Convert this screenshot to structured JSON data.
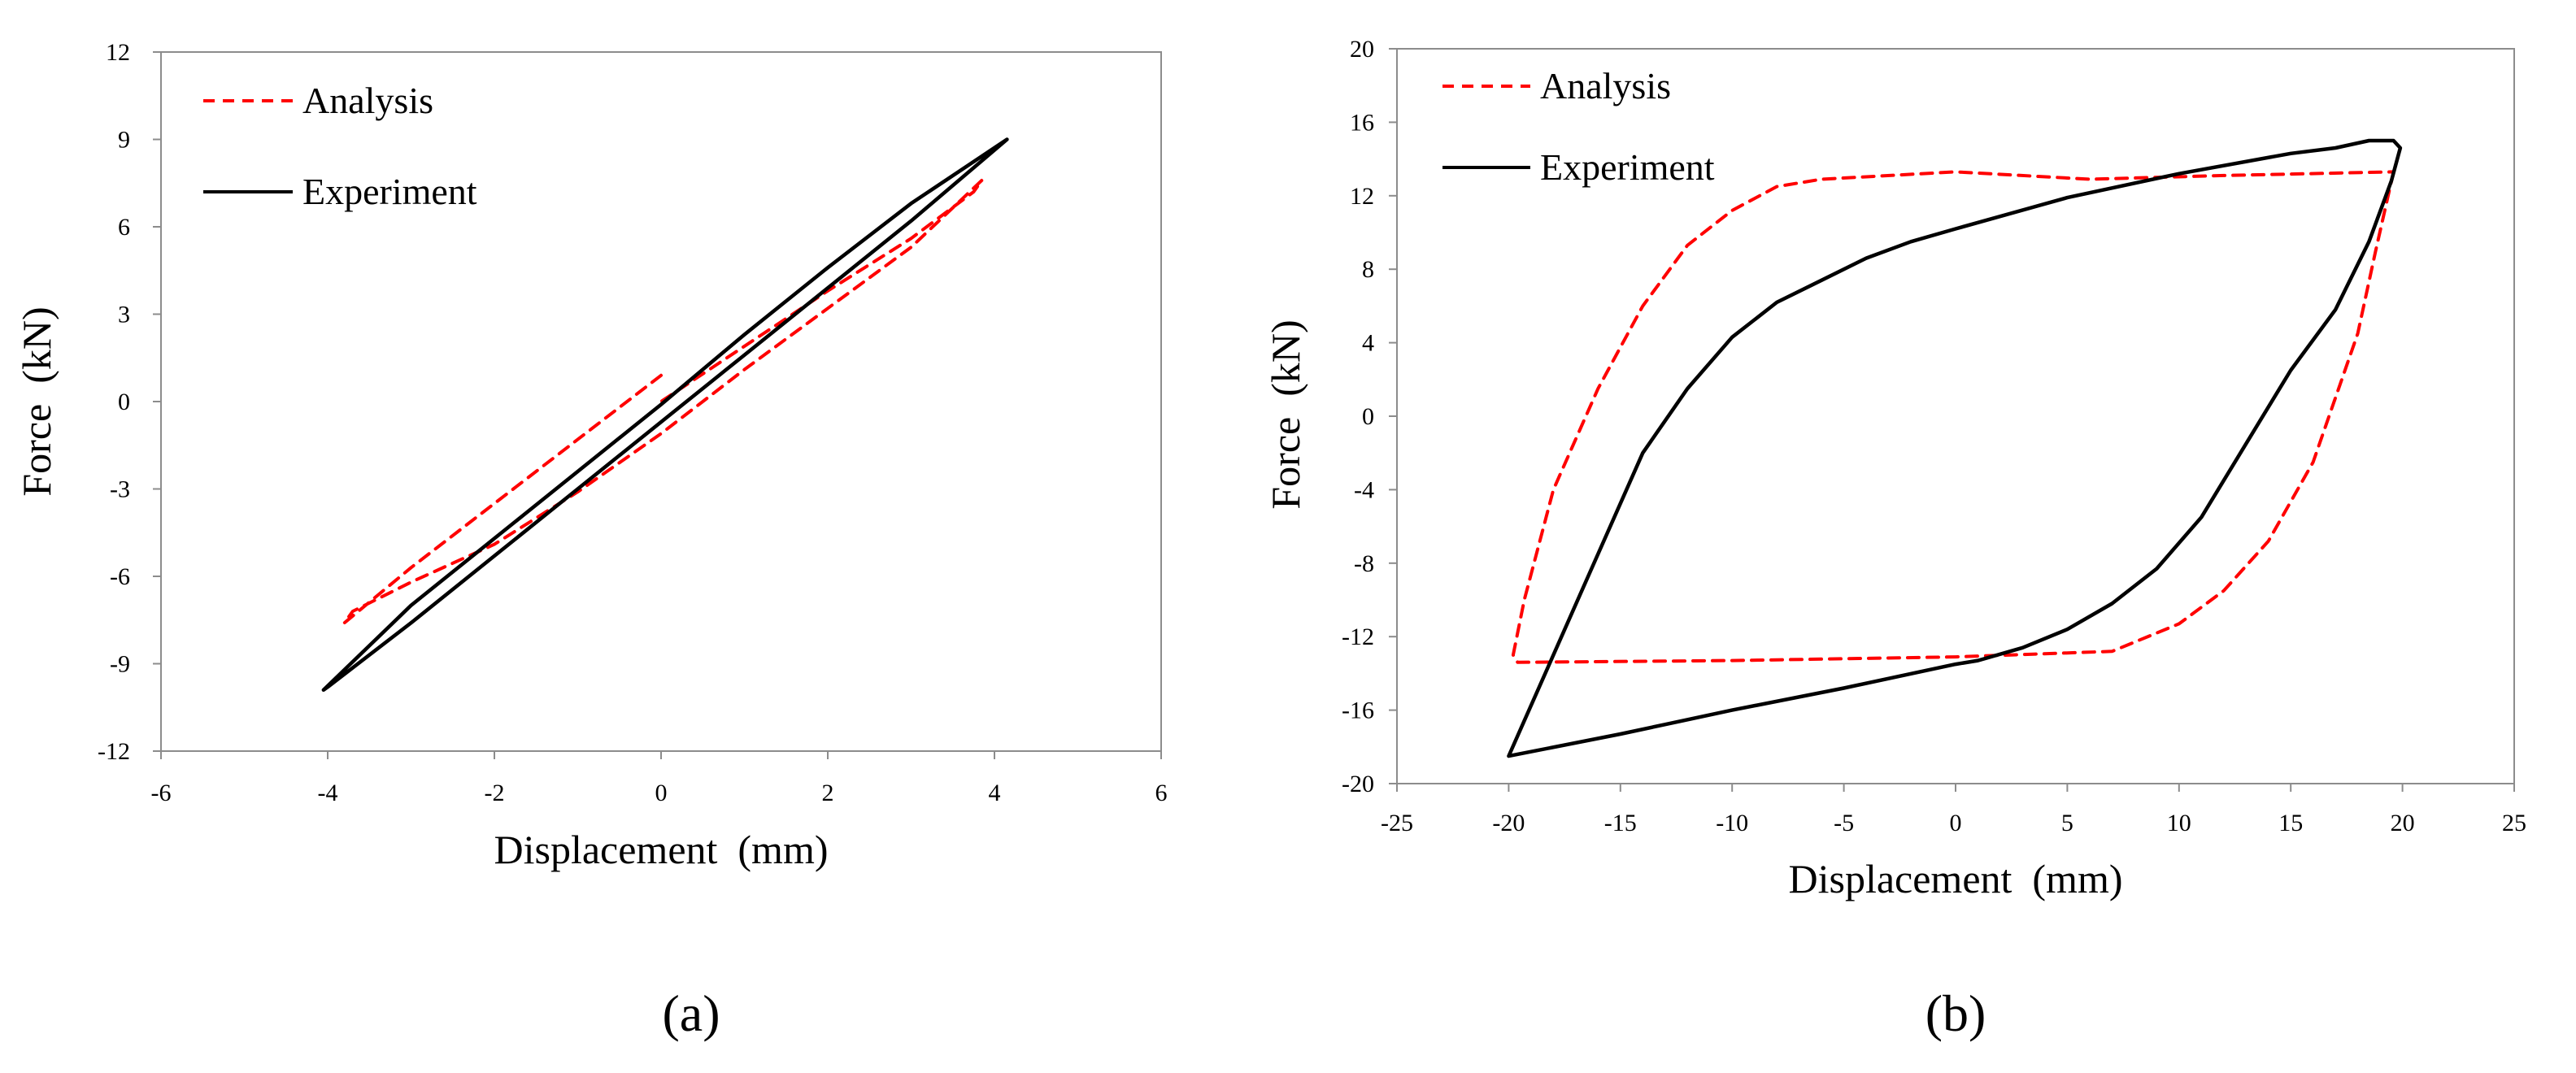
{
  "chart_data": [
    {
      "type": "line",
      "panel_label": "(a)",
      "xlabel": "Displacement  (mm)",
      "ylabel": "Force  (kN)",
      "xlim": [
        -6,
        6
      ],
      "ylim": [
        -12,
        12
      ],
      "xticks": [
        -6,
        -4,
        -2,
        0,
        2,
        4,
        6
      ],
      "yticks": [
        -12,
        -9,
        -6,
        -3,
        0,
        3,
        6,
        9,
        12
      ],
      "grid": false,
      "legend_position": "top-left",
      "series": [
        {
          "name": "Analysis",
          "color": "#ff0000",
          "style": "dashed",
          "x": [
            0.0,
            -1.0,
            -2.0,
            -3.0,
            -3.8,
            -3.7,
            -3.0,
            -2.0,
            -1.0,
            0.0,
            1.0,
            2.0,
            3.0,
            3.85,
            3.75,
            3.0,
            2.0,
            1.0,
            0.0
          ],
          "y": [
            0.9,
            -1.3,
            -3.5,
            -5.7,
            -7.6,
            -7.2,
            -6.2,
            -4.9,
            -3.1,
            -1.1,
            1.1,
            3.2,
            5.3,
            7.6,
            7.2,
            5.6,
            3.8,
            1.9,
            0.0
          ]
        },
        {
          "name": "Experiment",
          "color": "#000000",
          "style": "solid",
          "x": [
            4.15,
            3.0,
            2.0,
            1.0,
            0.0,
            -1.0,
            -2.0,
            -3.0,
            -4.0,
            -4.05,
            -3.0,
            -2.0,
            -1.0,
            0.0,
            1.0,
            2.0,
            3.0,
            4.15
          ],
          "y": [
            9.0,
            6.2,
            3.9,
            1.6,
            -0.7,
            -3.0,
            -5.3,
            -7.6,
            -9.8,
            -9.9,
            -7.0,
            -4.7,
            -2.4,
            -0.1,
            2.3,
            4.6,
            6.8,
            9.0
          ]
        }
      ]
    },
    {
      "type": "line",
      "panel_label": "(b)",
      "xlabel": "Displacement  (mm)",
      "ylabel": "Force  (kN)",
      "xlim": [
        -25,
        25
      ],
      "ylim": [
        -20,
        20
      ],
      "xticks": [
        -25,
        -20,
        -15,
        -10,
        -5,
        0,
        5,
        10,
        15,
        20,
        25
      ],
      "yticks": [
        -20,
        -16,
        -12,
        -8,
        -4,
        0,
        4,
        8,
        12,
        16,
        20
      ],
      "grid": false,
      "legend_position": "top-left",
      "series": [
        {
          "name": "Analysis",
          "color": "#ff0000",
          "style": "dashed",
          "x": [
            19.6,
            18.8,
            18.0,
            16.0,
            14.0,
            12.0,
            10.0,
            7.0,
            0.0,
            -10.0,
            -19.6,
            -19.8,
            -19.3,
            -18.0,
            -16.0,
            -14.0,
            -12.0,
            -10.0,
            -8.0,
            -6.0,
            0.0,
            6.0,
            12.0,
            19.6
          ],
          "y": [
            13.3,
            9.0,
            4.5,
            -2.5,
            -6.8,
            -9.5,
            -11.3,
            -12.8,
            -13.1,
            -13.3,
            -13.4,
            -13.0,
            -10.0,
            -4.0,
            1.5,
            6.0,
            9.3,
            11.2,
            12.5,
            12.9,
            13.3,
            12.9,
            13.1,
            13.3
          ]
        },
        {
          "name": "Experiment",
          "color": "#000000",
          "style": "solid",
          "x": [
            19.9,
            19.5,
            18.5,
            17.0,
            15.0,
            13.0,
            11.0,
            9.0,
            7.0,
            5.0,
            3.0,
            1.0,
            0.0,
            -5.0,
            -10.0,
            -15.0,
            -20.0,
            -16.0,
            -14.0,
            -12.0,
            -10.0,
            -8.0,
            -6.0,
            -4.0,
            -2.0,
            0.0,
            5.0,
            10.0,
            15.0,
            17.0,
            18.5,
            19.6,
            19.9
          ],
          "y": [
            14.6,
            12.8,
            9.5,
            5.8,
            2.5,
            -1.5,
            -5.5,
            -8.3,
            -10.2,
            -11.6,
            -12.6,
            -13.3,
            -13.5,
            -14.8,
            -16.0,
            -17.3,
            -18.5,
            -7.5,
            -2.0,
            1.5,
            4.3,
            6.2,
            7.4,
            8.6,
            9.5,
            10.2,
            11.9,
            13.2,
            14.3,
            14.6,
            15.0,
            15.0,
            14.6
          ]
        }
      ]
    }
  ]
}
